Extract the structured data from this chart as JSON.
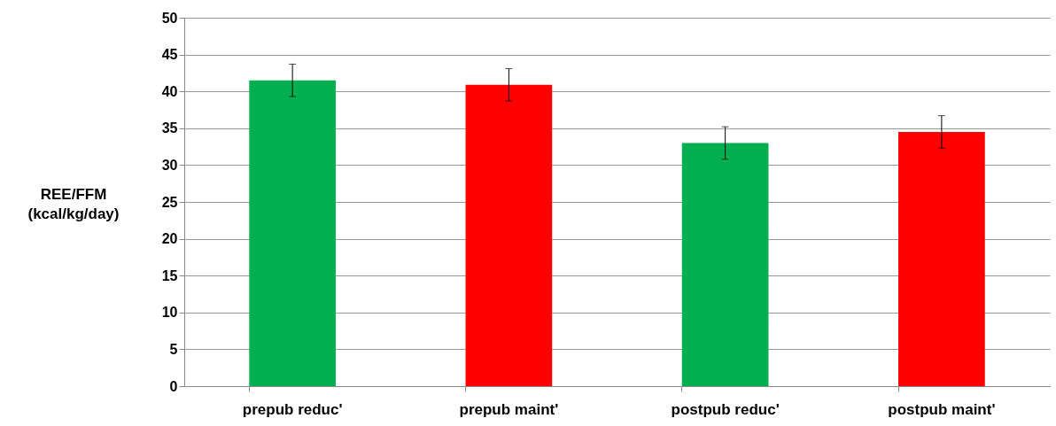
{
  "chart_data": {
    "type": "bar",
    "ylabel": "REE/FFM\n(kcal/kg/day)",
    "categories": [
      "prepub reduc'",
      "prepub maint'",
      "postpub reduc'",
      "postpub maint'"
    ],
    "values": [
      41.5,
      40.9,
      33.0,
      34.5
    ],
    "errors": [
      2.2,
      2.2,
      2.2,
      2.2
    ],
    "colors": [
      "#00b050",
      "#ff0000",
      "#00b050",
      "#ff0000"
    ],
    "ylim": [
      0,
      50
    ],
    "yticks": [
      0,
      5,
      10,
      15,
      20,
      25,
      30,
      35,
      40,
      45,
      50
    ],
    "grid": "y"
  }
}
